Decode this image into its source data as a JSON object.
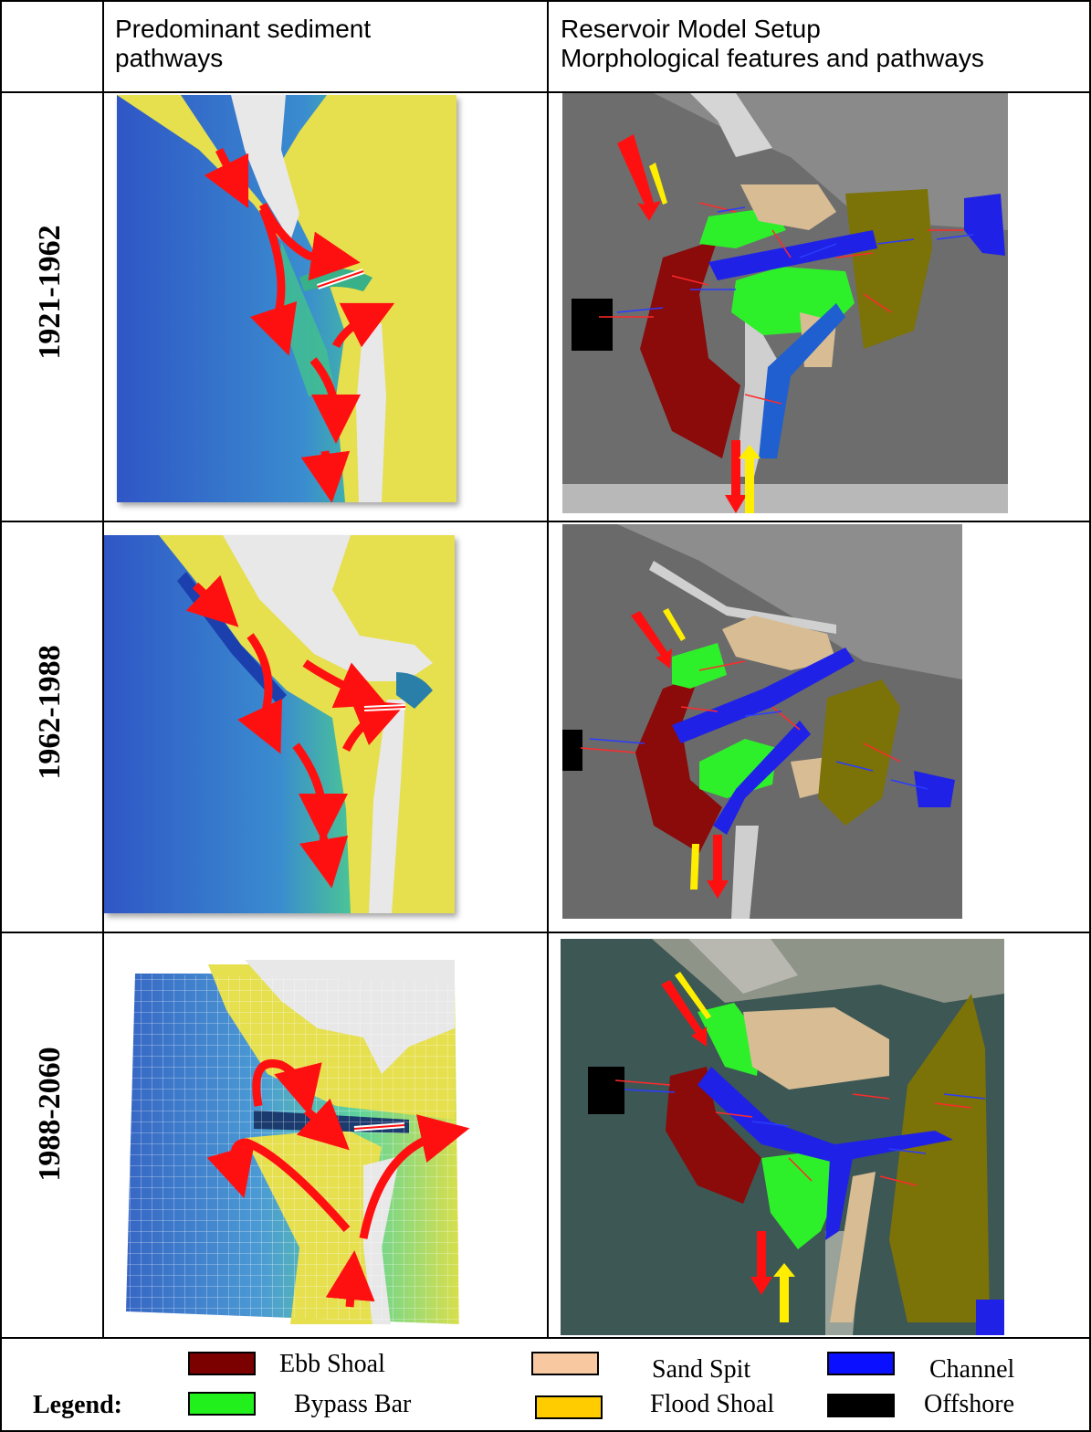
{
  "header": {
    "col1_line1": "Predominant sediment",
    "col1_line2": "pathways",
    "col2_line1": "Reservoir Model Setup",
    "col2_line2": "Morphological features and pathways"
  },
  "rows": [
    {
      "period": "1921-1962"
    },
    {
      "period": "1962-1988"
    },
    {
      "period": "1988-2060"
    }
  ],
  "legend": {
    "title": "Legend:",
    "items": [
      {
        "label": "Ebb Shoal",
        "color": "#7b0000"
      },
      {
        "label": "Sand Spit",
        "color": "#f8c9a0"
      },
      {
        "label": "Channel",
        "color": "#0a10ff"
      },
      {
        "label": "Bypass Bar",
        "color": "#22f01c"
      },
      {
        "label": "Flood Shoal",
        "color": "#ffcc00"
      },
      {
        "label": "Offshore",
        "color": "#000000"
      }
    ]
  },
  "colors": {
    "ebb_shoal": "#8b0a0a",
    "bypass_bar": "#2ef02a",
    "sand_spit": "#d8bc94",
    "channel": "#1f22e6",
    "flood_shoal": "#7b7208",
    "offshore": "#000000",
    "pathway_arrow": "#ff1010",
    "terrain_yellow": "#e8e050",
    "water_blue": "#3f6fd0",
    "water_green": "#4ed08a"
  }
}
